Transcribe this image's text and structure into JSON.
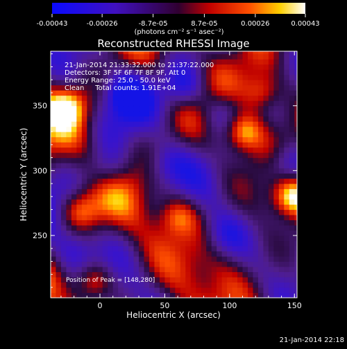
{
  "chart_data": {
    "type": "heatmap",
    "title": "Reconstructed RHESSI Image",
    "xlabel": "Heliocentric X (arcsec)",
    "ylabel": "Heliocentric Y (arcsec)",
    "xlim": [
      -38,
      152
    ],
    "ylim": [
      202,
      392
    ],
    "x_ticks": [
      0,
      50,
      100,
      150
    ],
    "x_tick_labels": [
      "0",
      "50",
      "100",
      "150"
    ],
    "y_ticks": [
      250,
      300,
      350
    ],
    "y_tick_labels": [
      "250",
      "300",
      "350"
    ],
    "colorbar": {
      "min": -0.00043,
      "max": 0.00043,
      "ticks": [
        -0.00043,
        -0.00026,
        -8.7e-05,
        8.7e-05,
        0.00026,
        0.00043
      ],
      "tick_labels": [
        "-0.00043",
        "-0.00026",
        "-8.7e-05",
        "8.7e-05",
        "0.00026",
        "0.00043"
      ],
      "unit": "(photons cm⁻² s⁻¹ asec⁻²)"
    },
    "annotations": [
      "21-Jan-2014 21:33:32.000 to 21:37:22.000",
      "Detectors: 3F 5F 6F 7F 8F 9F, Att 0",
      "Energy Range: 25.0 - 50.0 keV",
      "Clean     Total counts: 1.91E+04"
    ],
    "position_note": "Position of Peak = [148,280]",
    "peak": [
      148,
      280
    ],
    "timestamp": "21-Jan-2014 22:18",
    "colors": {
      "background": "#000000",
      "text": "#ffffff",
      "low": "#1a1ad8",
      "mid_low": "#4a1a8a",
      "mid": "#c01010",
      "mid_high": "#f06000",
      "high": "#ffffff"
    }
  }
}
